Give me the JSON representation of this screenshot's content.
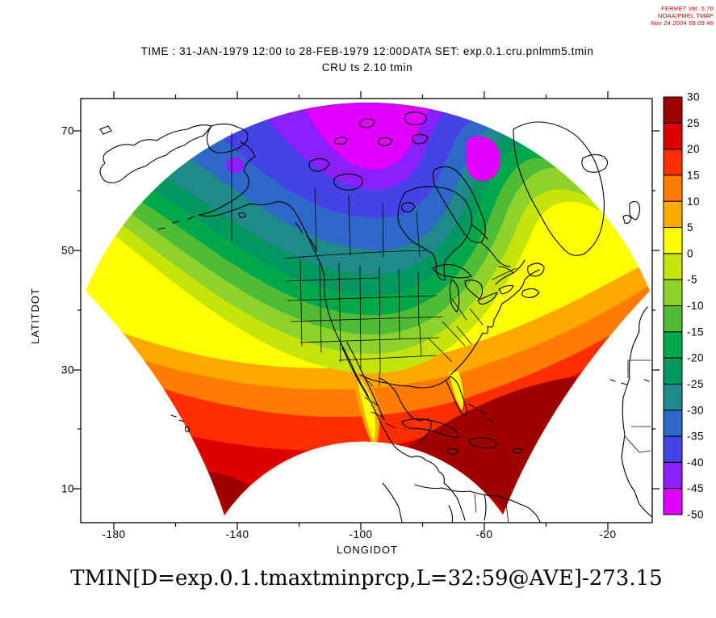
{
  "meta": {
    "line1": "FERRET Ver. 5.70",
    "line2": "NOAA/PMEL TMAP",
    "line3": "Nov 24 2004 09:09:49",
    "credit_color": "#d40000"
  },
  "titles": {
    "line1": "TIME : 31-JAN-1979 12:00 to 28-FEB-1979 12:00DATA SET: exp.0.1.cru.pnlmm5.tmin",
    "line2": "CRU ts 2.10 tmin",
    "bottom_expression": "TMIN[D=exp.0.1.tmaxtminprcp,L=32:59@AVE]-273.15"
  },
  "axes": {
    "x": {
      "label": "LONGIDOT",
      "ticks": [
        "-180",
        "-140",
        "-100",
        "-60",
        "-20"
      ]
    },
    "y": {
      "label": "LATITDOT",
      "ticks": [
        "70",
        "50",
        "30",
        "10"
      ]
    }
  },
  "colorbar": {
    "levels": [
      "30",
      "25",
      "20",
      "15",
      "10",
      "5",
      "0",
      "-5",
      "-10",
      "-15",
      "-20",
      "-25",
      "-30",
      "-35",
      "-40",
      "-45",
      "-50"
    ],
    "colors": [
      "#9e0000",
      "#df0000",
      "#ff2e00",
      "#ff7c00",
      "#ffa800",
      "#ffff00",
      "#c6e409",
      "#8ed32b",
      "#50bc36",
      "#00a84c",
      "#00985e",
      "#20898a",
      "#2e68c8",
      "#4343e6",
      "#8a1fff",
      "#df00ff"
    ]
  },
  "chart_data": {
    "type": "heatmap",
    "subtype": "filled_contour_map",
    "title": "CRU ts 2.10 tmin",
    "time_range": "31-JAN-1979 12:00 to 28-FEB-1979 12:00",
    "dataset": "exp.0.1.cru.pnlmm5.tmin",
    "variable_expression": "TMIN[D=exp.0.1.tmaxtminprcp,L=32:59@AVE]-273.15",
    "xlabel": "LONGIDOT",
    "ylabel": "LATITDOT",
    "x_ticks": [
      -180,
      -140,
      -100,
      -60,
      -20
    ],
    "y_ticks": [
      70,
      50,
      30,
      10
    ],
    "contour_levels": [
      30,
      25,
      20,
      15,
      10,
      5,
      0,
      -5,
      -10,
      -15,
      -20,
      -25,
      -30,
      -35,
      -40,
      -45,
      -50
    ],
    "palette_hot_to_cold": [
      "#9e0000",
      "#df0000",
      "#ff2e00",
      "#ff7c00",
      "#ffa800",
      "#ffff00",
      "#c6e409",
      "#8ed32b",
      "#50bc36",
      "#00a84c",
      "#00985e",
      "#20898a",
      "#2e68c8",
      "#4343e6",
      "#8a1fff",
      "#df00ff"
    ],
    "projection": "curvilinear fan (polar-style) grid over North America",
    "legend_position": "right colorbar",
    "region_values": [
      {
        "region": "Canadian Arctic archipelago (top center)",
        "value_range_c": "-50 to -40"
      },
      {
        "region": "Hudson Bay / central-north Canada",
        "value_range_c": "-40 to -30"
      },
      {
        "region": "southern Canada and Great Lakes",
        "value_range_c": "-30 to -15"
      },
      {
        "region": "northern United States plains",
        "value_range_c": "-15 to -5"
      },
      {
        "region": "southern United States",
        "value_range_c": "-5 to 5"
      },
      {
        "region": "NE Pacific mid-latitudes (left edge)",
        "value_range_c": "0 to 10"
      },
      {
        "region": "subtropical Atlantic / Gulf of Mexico",
        "value_range_c": "15 to 25"
      },
      {
        "region": "Caribbean and deep tropics (bottom lobes)",
        "value_range_c": "25 to 30"
      }
    ]
  }
}
